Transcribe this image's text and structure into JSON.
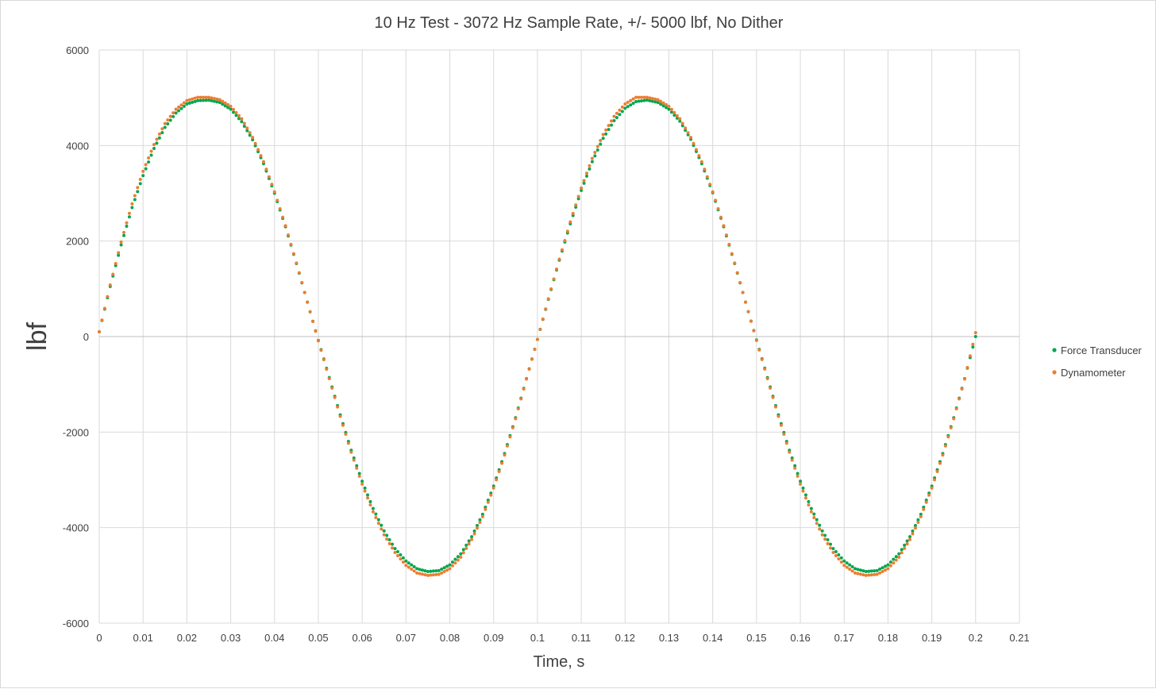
{
  "chart_data": {
    "type": "scatter",
    "title": "10 Hz Test - 3072 Hz Sample Rate, +/- 5000 lbf, No Dither",
    "xlabel": "Time, s",
    "ylabel": "lbf",
    "xlim": [
      0,
      0.21
    ],
    "ylim": [
      -6000,
      6000
    ],
    "x_ticks": [
      "0",
      "0.01",
      "0.02",
      "0.03",
      "0.04",
      "0.05",
      "0.06",
      "0.07",
      "0.08",
      "0.09",
      "0.1",
      "0.11",
      "0.12",
      "0.13",
      "0.14",
      "0.15",
      "0.16",
      "0.17",
      "0.18",
      "0.19",
      "0.2",
      "0.21"
    ],
    "y_ticks": [
      "6000",
      "4000",
      "2000",
      "0",
      "-2000",
      "-4000",
      "-6000"
    ],
    "grid": true,
    "legend_position": "right",
    "series": [
      {
        "name": "Force Transducer",
        "color": "#00a650",
        "x": [
          0,
          0.0025,
          0.005,
          0.0075,
          0.01,
          0.0125,
          0.015,
          0.0175,
          0.02,
          0.0225,
          0.025,
          0.0275,
          0.03,
          0.0325,
          0.035,
          0.0375,
          0.04,
          0.0425,
          0.045,
          0.0475,
          0.05,
          0.0525,
          0.055,
          0.0575,
          0.06,
          0.0625,
          0.065,
          0.0675,
          0.07,
          0.0725,
          0.075,
          0.0775,
          0.08,
          0.0825,
          0.085,
          0.0875,
          0.09,
          0.0925,
          0.095,
          0.0975,
          0.1,
          0.1025,
          0.105,
          0.1075,
          0.11,
          0.1125,
          0.115,
          0.1175,
          0.12,
          0.1225,
          0.125,
          0.1275,
          0.13,
          0.1325,
          0.135,
          0.1375,
          0.14,
          0.1425,
          0.145,
          0.1475,
          0.15,
          0.1525,
          0.155,
          0.1575,
          0.16,
          0.1625,
          0.165,
          0.1675,
          0.17,
          0.1725,
          0.175,
          0.1775,
          0.18,
          0.1825,
          0.185,
          0.1875,
          0.19,
          0.1925,
          0.195,
          0.1975,
          0.2
        ],
        "y": [
          100,
          1050,
          1920,
          2700,
          3370,
          3940,
          4380,
          4680,
          4870,
          4940,
          4950,
          4900,
          4760,
          4500,
          4120,
          3620,
          3000,
          2300,
          1530,
          720,
          -80,
          -860,
          -1640,
          -2380,
          -3030,
          -3600,
          -4070,
          -4440,
          -4700,
          -4860,
          -4920,
          -4900,
          -4780,
          -4550,
          -4190,
          -3720,
          -3130,
          -2450,
          -1700,
          -880,
          -60,
          780,
          1600,
          2360,
          3060,
          3660,
          4150,
          4520,
          4780,
          4920,
          4950,
          4900,
          4760,
          4510,
          4130,
          3620,
          3010,
          2300,
          1530,
          720,
          -70,
          -860,
          -1640,
          -2380,
          -3030,
          -3600,
          -4070,
          -4440,
          -4700,
          -4860,
          -4920,
          -4900,
          -4780,
          -4550,
          -4190,
          -3720,
          -3130,
          -2450,
          -1700,
          -880,
          0
        ]
      },
      {
        "name": "Dynamometer",
        "color": "#ed7d31",
        "x": [
          0,
          0.0025,
          0.005,
          0.0075,
          0.01,
          0.0125,
          0.015,
          0.0175,
          0.02,
          0.0225,
          0.025,
          0.0275,
          0.03,
          0.0325,
          0.035,
          0.0375,
          0.04,
          0.0425,
          0.045,
          0.0475,
          0.05,
          0.0525,
          0.055,
          0.0575,
          0.06,
          0.0625,
          0.065,
          0.0675,
          0.07,
          0.0725,
          0.075,
          0.0775,
          0.08,
          0.0825,
          0.085,
          0.0875,
          0.09,
          0.0925,
          0.095,
          0.0975,
          0.1,
          0.1025,
          0.105,
          0.1075,
          0.11,
          0.1125,
          0.115,
          0.1175,
          0.12,
          0.1225,
          0.125,
          0.1275,
          0.13,
          0.1325,
          0.135,
          0.1375,
          0.14,
          0.1425,
          0.145,
          0.1475,
          0.15,
          0.1525,
          0.155,
          0.1575,
          0.16,
          0.1625,
          0.165,
          0.1675,
          0.17,
          0.1725,
          0.175,
          0.1775,
          0.18,
          0.1825,
          0.185,
          0.1875,
          0.19,
          0.1925,
          0.195,
          0.1975,
          0.2
        ],
        "y": [
          100,
          1080,
          1980,
          2780,
          3460,
          4020,
          4460,
          4760,
          4940,
          5010,
          5010,
          4960,
          4820,
          4560,
          4170,
          3660,
          3030,
          2320,
          1540,
          720,
          -90,
          -880,
          -1670,
          -2420,
          -3090,
          -3670,
          -4150,
          -4520,
          -4790,
          -4950,
          -5000,
          -4980,
          -4860,
          -4620,
          -4250,
          -3770,
          -3170,
          -2480,
          -1720,
          -890,
          -60,
          790,
          1620,
          2400,
          3110,
          3730,
          4230,
          4610,
          4870,
          5010,
          5010,
          4960,
          4820,
          4560,
          4170,
          3660,
          3030,
          2320,
          1540,
          720,
          -80,
          -880,
          -1670,
          -2420,
          -3090,
          -3670,
          -4150,
          -4520,
          -4790,
          -4950,
          -5000,
          -4980,
          -4860,
          -4620,
          -4250,
          -3770,
          -3170,
          -2480,
          -1720,
          -890,
          80
        ]
      }
    ]
  }
}
